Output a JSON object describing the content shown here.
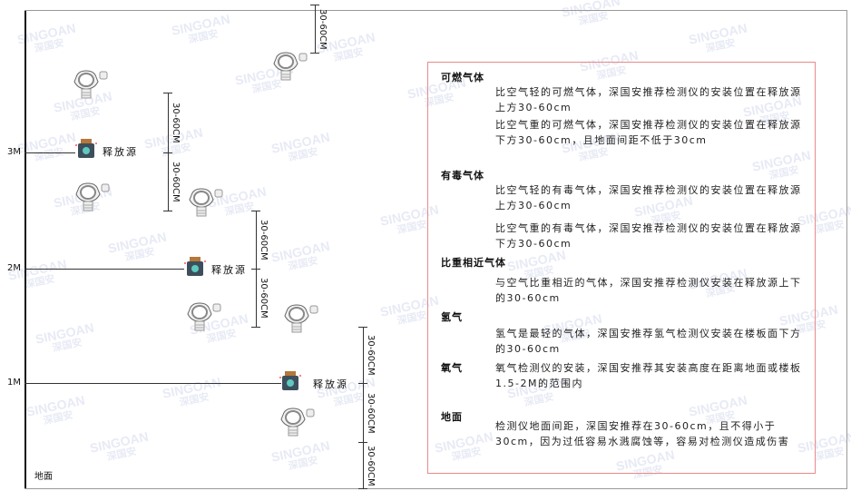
{
  "watermark": {
    "brand": "SINGOAN",
    "name": "深国安"
  },
  "levels": {
    "l3": "3M",
    "l2": "2M",
    "l1": "1M",
    "ground": "地面"
  },
  "source_label": "释放源",
  "dimension": "30-60CM",
  "icons": {
    "detector": "gas-detector-icon",
    "source": "release-source-icon"
  },
  "colors": {
    "box_border": "#e88a8a",
    "source_body": "#3d4f5c",
    "source_cap": "#b5773a"
  },
  "panel": {
    "sections": [
      {
        "title": "可燃气体",
        "paras": [
          "比空气轻的可燃气体，深国安推荐检测仪的安装位置在释放源上方30-60cm",
          "比空气重的可燃气体，深国安推荐检测仪的安装位置在释放源下方30-60cm，且地面间距不低于30cm"
        ]
      },
      {
        "title": "有毒气体",
        "paras": [
          "比空气轻的有毒气体，深国安推荐检测仪的安装位置在释放源上方30-60cm",
          "比空气重的有毒气体，深国安推荐检测仪的安装位置在释放源下方30-60cm"
        ]
      },
      {
        "title": "比重相近气体",
        "paras": [
          "与空气比重相近的气体，深国安推荐检测仪安装在释放源上下的30-60cm"
        ]
      },
      {
        "title": "氢气",
        "paras": [
          "氢气是最轻的气体，深国安推荐氢气检测仪安装在楼板面下方的30-60cm"
        ]
      },
      {
        "title": "氧气",
        "paras": [
          "氧气检测仪的安装，深国安推荐其安装高度在距离地面或楼板1.5-2M的范围内"
        ]
      },
      {
        "title": "地面",
        "paras": [
          "检测仪地面间距，深国安推荐在30-60cm，且不得小于30cm，因为过低容易水溅腐蚀等，容易对检测仪造成伤害"
        ]
      }
    ]
  }
}
